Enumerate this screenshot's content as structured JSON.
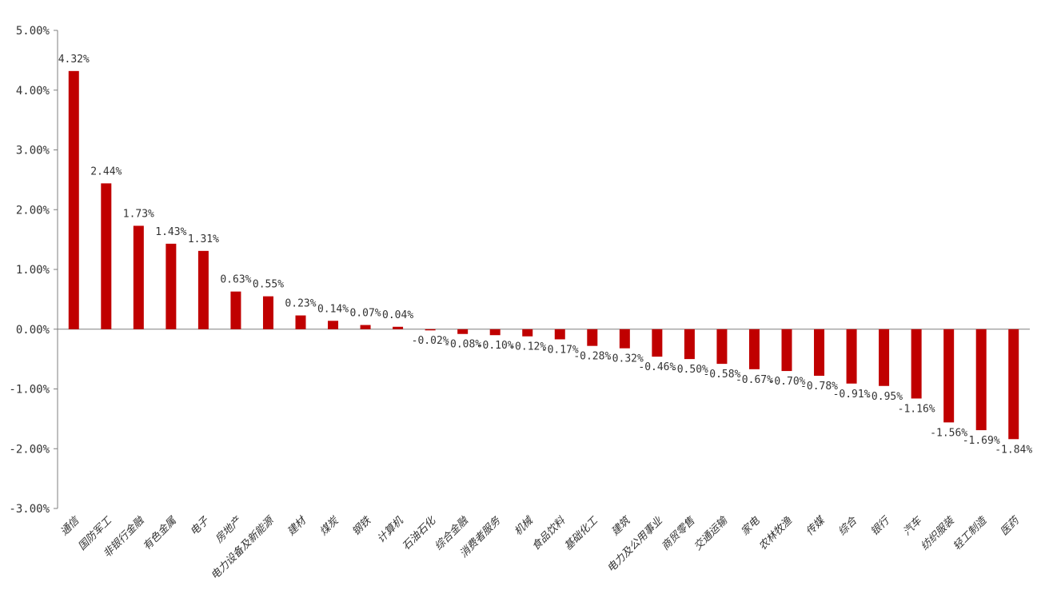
{
  "chart_data": {
    "type": "bar",
    "title": "",
    "xlabel": "",
    "ylabel": "",
    "ylim": [
      -3,
      5
    ],
    "yticks": [
      5,
      4,
      3,
      2,
      1,
      0,
      -1,
      -2,
      -3
    ],
    "ytick_labels": [
      "5.00%",
      "4.00%",
      "3.00%",
      "2.00%",
      "1.00%",
      "0.00%",
      "-1.00%",
      "-2.00%",
      "-3.00%"
    ],
    "grid": false,
    "legend": "none",
    "bar_color": "#C00000",
    "categories": [
      "通信",
      "国防军工",
      "非银行金融",
      "有色金属",
      "电子",
      "房地产",
      "电力设备及新能源",
      "建材",
      "煤炭",
      "钢铁",
      "计算机",
      "石油石化",
      "综合金融",
      "消费者服务",
      "机械",
      "食品饮料",
      "基础化工",
      "建筑",
      "电力及公用事业",
      "商贸零售",
      "交通运输",
      "家电",
      "农林牧渔",
      "传媒",
      "综合",
      "银行",
      "汽车",
      "纺织服装",
      "轻工制造",
      "医药"
    ],
    "values": [
      4.32,
      2.44,
      1.73,
      1.43,
      1.31,
      0.63,
      0.55,
      0.23,
      0.14,
      0.07,
      0.04,
      -0.02,
      -0.08,
      -0.1,
      -0.12,
      -0.17,
      -0.28,
      -0.32,
      -0.46,
      -0.5,
      -0.58,
      -0.67,
      -0.7,
      -0.78,
      -0.91,
      -0.95,
      -1.16,
      -1.56,
      -1.69,
      -1.84
    ],
    "data_labels": [
      "4.32%",
      "2.44%",
      "1.73%",
      "1.43%",
      "1.31%",
      "0.63%",
      "0.55%",
      "0.23%",
      "0.14%",
      "0.07%",
      "0.04%",
      "-0.02%",
      "-0.08%",
      "-0.10%",
      "-0.12%",
      "-0.17%",
      "-0.28%",
      "-0.32%",
      "-0.46%",
      "-0.50%",
      "-0.58%",
      "-0.67%",
      "-0.70%",
      "-0.78%",
      "-0.91%",
      "-0.95%",
      "-1.16%",
      "-1.56%",
      "-1.69%",
      "-1.84%"
    ]
  }
}
